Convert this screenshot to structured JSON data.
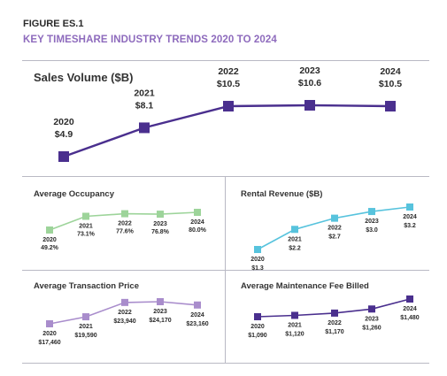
{
  "figure": {
    "label": "FIGURE ES.1",
    "title": "KEY TIMESHARE INDUSTRY TRENDS 2020 TO 2024"
  },
  "colors": {
    "sales": "#4a2f8e",
    "occupancy": "#9dd49a",
    "rental": "#57c3dd",
    "transaction": "#a98dcc",
    "maintenance": "#4a2f8e",
    "title_accent": "#8e6bbd"
  },
  "chart_data": [
    {
      "id": "sales",
      "type": "line",
      "title": "Sales Volume ($B)",
      "x": [
        "2020",
        "2021",
        "2022",
        "2023",
        "2024"
      ],
      "values": [
        4.9,
        8.1,
        10.5,
        10.6,
        10.5
      ],
      "labels": [
        "$4.9",
        "$8.1",
        "$10.5",
        "$10.6",
        "$10.5"
      ]
    },
    {
      "id": "occupancy",
      "type": "line",
      "title": "Average Occupancy",
      "x": [
        "2020",
        "2021",
        "2022",
        "2023",
        "2024"
      ],
      "values": [
        49.2,
        73.1,
        77.6,
        76.8,
        80.0
      ],
      "labels": [
        "49.2%",
        "73.1%",
        "77.6%",
        "76.8%",
        "80.0%"
      ]
    },
    {
      "id": "rental",
      "type": "line",
      "title": "Rental Revenue ($B)",
      "x": [
        "2020",
        "2021",
        "2022",
        "2023",
        "2024"
      ],
      "values": [
        1.3,
        2.2,
        2.7,
        3.0,
        3.2
      ],
      "labels": [
        "$1.3",
        "$2.2",
        "$2.7",
        "$3.0",
        "$3.2"
      ]
    },
    {
      "id": "transaction",
      "type": "line",
      "title": "Average Transaction Price",
      "x": [
        "2020",
        "2021",
        "2022",
        "2023",
        "2024"
      ],
      "values": [
        17460,
        19590,
        23940,
        24170,
        23160
      ],
      "labels": [
        "$17,460",
        "$19,590",
        "$23,940",
        "$24,170",
        "$23,160"
      ]
    },
    {
      "id": "maintenance",
      "type": "line",
      "title": "Average Maintenance Fee Billed",
      "x": [
        "2020",
        "2021",
        "2022",
        "2023",
        "2024"
      ],
      "values": [
        1090,
        1120,
        1170,
        1260,
        1480
      ],
      "labels": [
        "$1,090",
        "$1,120",
        "$1,170",
        "$1,260",
        "$1,480"
      ]
    }
  ]
}
